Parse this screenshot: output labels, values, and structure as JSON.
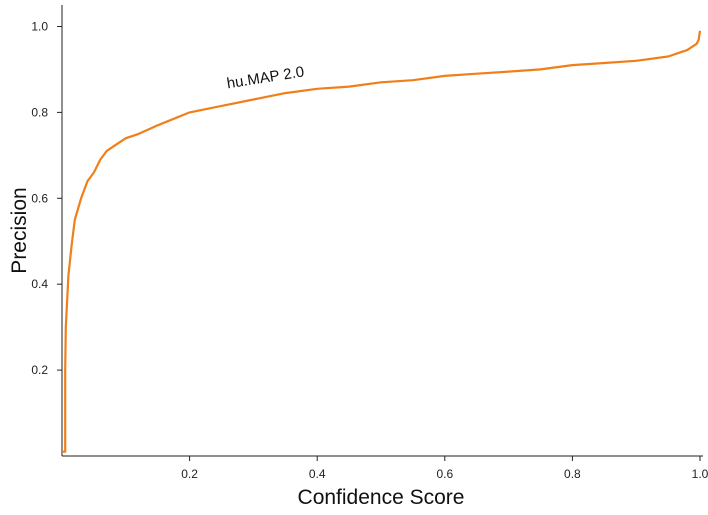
{
  "chart_data": {
    "type": "line",
    "xlabel": "Confidence Score",
    "ylabel": "Precision",
    "xlim": [
      0,
      1.0
    ],
    "ylim": [
      0,
      1.05
    ],
    "x_ticks": [
      0.2,
      0.4,
      0.6,
      0.8,
      1.0
    ],
    "x_tick_labels": [
      "0.2",
      "0.4",
      "0.6",
      "0.8",
      "1.0"
    ],
    "y_ticks": [
      0.2,
      0.4,
      0.6,
      0.8,
      1.0
    ],
    "y_tick_labels": [
      "0.2",
      "0.4",
      "0.6",
      "0.8",
      "1.0"
    ],
    "grid": false,
    "series_color": "#f07f1a",
    "series": [
      {
        "name": "hu.MAP 2.0",
        "x": [
          0.0,
          0.005,
          0.005,
          0.006,
          0.008,
          0.01,
          0.015,
          0.02,
          0.03,
          0.04,
          0.05,
          0.06,
          0.07,
          0.08,
          0.1,
          0.12,
          0.15,
          0.2,
          0.25,
          0.3,
          0.35,
          0.4,
          0.45,
          0.5,
          0.55,
          0.6,
          0.65,
          0.7,
          0.75,
          0.8,
          0.85,
          0.9,
          0.95,
          0.97,
          0.98,
          0.99,
          0.995,
          0.998,
          1.0
        ],
        "y": [
          0.01,
          0.01,
          0.2,
          0.3,
          0.36,
          0.42,
          0.49,
          0.55,
          0.6,
          0.64,
          0.66,
          0.69,
          0.71,
          0.72,
          0.74,
          0.75,
          0.77,
          0.8,
          0.815,
          0.83,
          0.845,
          0.855,
          0.86,
          0.87,
          0.875,
          0.885,
          0.89,
          0.895,
          0.9,
          0.91,
          0.915,
          0.92,
          0.93,
          0.94,
          0.945,
          0.955,
          0.96,
          0.97,
          0.99
        ]
      }
    ],
    "annotations": [
      {
        "text": "hu.MAP 2.0",
        "x": 0.32,
        "y": 0.87
      }
    ]
  }
}
